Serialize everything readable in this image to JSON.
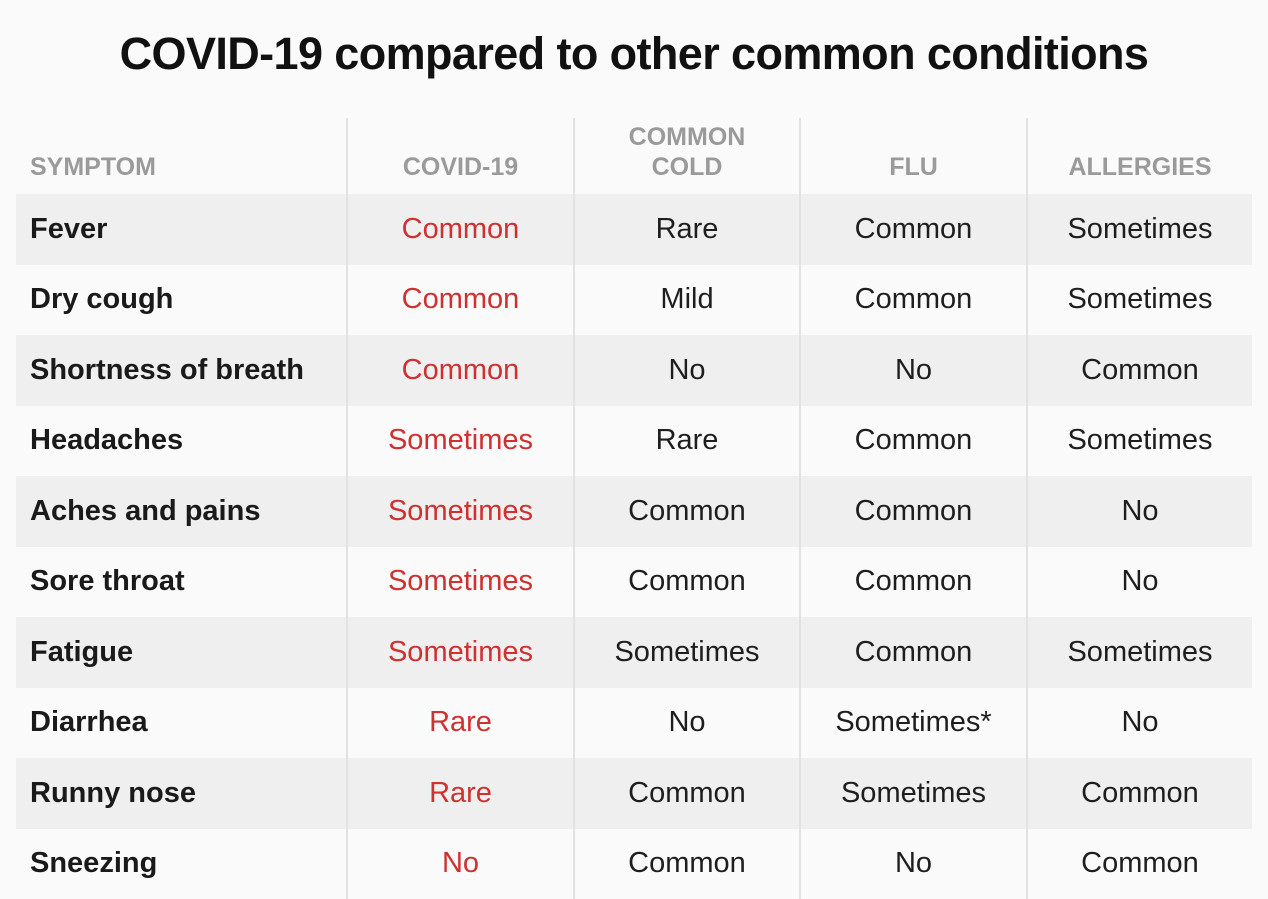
{
  "title": "COVID-19 compared to other common conditions",
  "colors": {
    "covid_accent": "#d0302f",
    "header_text": "#9a9a9a",
    "row_shade": "#efefef",
    "background": "#fafafa"
  },
  "table": {
    "headers": [
      "SYMPTOM",
      "COVID-19",
      "COMMON\nCOLD",
      "FLU",
      "ALLERGIES"
    ],
    "rows": [
      {
        "symptom": "Fever",
        "covid": "Common",
        "cold": "Rare",
        "flu": "Common",
        "allergies": "Sometimes"
      },
      {
        "symptom": "Dry cough",
        "covid": "Common",
        "cold": "Mild",
        "flu": "Common",
        "allergies": "Sometimes"
      },
      {
        "symptom": "Shortness of breath",
        "covid": "Common",
        "cold": "No",
        "flu": "No",
        "allergies": "Common"
      },
      {
        "symptom": "Headaches",
        "covid": "Sometimes",
        "cold": "Rare",
        "flu": "Common",
        "allergies": "Sometimes"
      },
      {
        "symptom": "Aches and pains",
        "covid": "Sometimes",
        "cold": "Common",
        "flu": "Common",
        "allergies": "No"
      },
      {
        "symptom": "Sore throat",
        "covid": "Sometimes",
        "cold": "Common",
        "flu": "Common",
        "allergies": "No"
      },
      {
        "symptom": "Fatigue",
        "covid": "Sometimes",
        "cold": "Sometimes",
        "flu": "Common",
        "allergies": "Sometimes"
      },
      {
        "symptom": "Diarrhea",
        "covid": "Rare",
        "cold": "No",
        "flu": "Sometimes*",
        "allergies": "No"
      },
      {
        "symptom": "Runny nose",
        "covid": "Rare",
        "cold": "Common",
        "flu": "Sometimes",
        "allergies": "Common"
      },
      {
        "symptom": "Sneezing",
        "covid": "No",
        "cold": "Common",
        "flu": "No",
        "allergies": "Common"
      }
    ]
  }
}
